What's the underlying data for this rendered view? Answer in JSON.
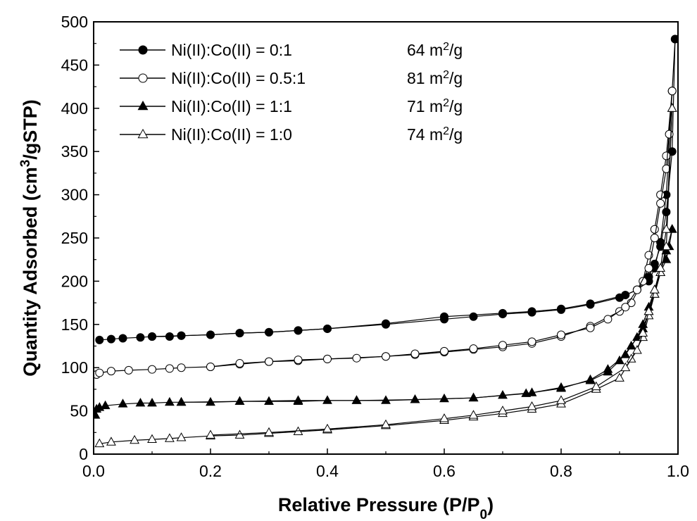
{
  "chart_data": {
    "type": "scatter",
    "xlabel": "Relative Pressure (P/P",
    "xlabel_sub": "0",
    "xlabel_tail": ")",
    "ylabel": "Quantity Adsorbed (cm",
    "ylabel_sup": "3",
    "ylabel_tail": "/gSTP)",
    "xlim": [
      0.0,
      1.0
    ],
    "ylim": [
      0,
      500
    ],
    "xticks": [
      "0.0",
      "0.2",
      "0.4",
      "0.6",
      "0.8",
      "1.0"
    ],
    "yticks": [
      "0",
      "50",
      "100",
      "150",
      "200",
      "250",
      "300",
      "350",
      "400",
      "450",
      "500"
    ],
    "legend_position": "top-left",
    "grid": false,
    "series": [
      {
        "name": "Ni(II):Co(II) = 0:1",
        "area": "64 m",
        "area_sup": "2",
        "area_unit": "/g",
        "marker": "circle",
        "filled": true,
        "adsorption": [
          [
            0.01,
            132
          ],
          [
            0.03,
            133
          ],
          [
            0.05,
            134
          ],
          [
            0.08,
            135
          ],
          [
            0.1,
            136
          ],
          [
            0.13,
            136
          ],
          [
            0.15,
            137
          ],
          [
            0.2,
            138
          ],
          [
            0.25,
            140
          ],
          [
            0.3,
            141
          ],
          [
            0.35,
            143
          ],
          [
            0.4,
            145
          ],
          [
            0.5,
            150
          ],
          [
            0.6,
            156
          ],
          [
            0.65,
            159
          ],
          [
            0.7,
            162
          ],
          [
            0.75,
            164
          ],
          [
            0.8,
            167
          ],
          [
            0.85,
            173
          ],
          [
            0.9,
            181
          ],
          [
            0.93,
            190
          ],
          [
            0.95,
            205
          ],
          [
            0.96,
            220
          ],
          [
            0.97,
            240
          ],
          [
            0.98,
            280
          ],
          [
            0.99,
            350
          ],
          [
            0.995,
            480
          ]
        ],
        "desorption": [
          [
            0.995,
            480
          ],
          [
            0.99,
            420
          ],
          [
            0.98,
            300
          ],
          [
            0.97,
            245
          ],
          [
            0.96,
            215
          ],
          [
            0.95,
            200
          ],
          [
            0.93,
            190
          ],
          [
            0.91,
            184
          ],
          [
            0.85,
            174
          ],
          [
            0.8,
            168
          ],
          [
            0.75,
            165
          ],
          [
            0.7,
            163
          ],
          [
            0.6,
            159
          ],
          [
            0.5,
            151
          ],
          [
            0.4,
            145
          ],
          [
            0.35,
            143
          ],
          [
            0.3,
            141
          ],
          [
            0.25,
            140
          ],
          [
            0.2,
            138
          ],
          [
            0.15,
            137
          ],
          [
            0.1,
            136
          ]
        ]
      },
      {
        "name": "Ni(II):Co(II) = 0.5:1",
        "area": "81 m",
        "area_sup": "2",
        "area_unit": "/g",
        "marker": "circle",
        "filled": false,
        "adsorption": [
          [
            0.005,
            92
          ],
          [
            0.01,
            94
          ],
          [
            0.03,
            96
          ],
          [
            0.06,
            97
          ],
          [
            0.1,
            98
          ],
          [
            0.13,
            99
          ],
          [
            0.15,
            100
          ],
          [
            0.2,
            101
          ],
          [
            0.25,
            104
          ],
          [
            0.3,
            107
          ],
          [
            0.35,
            108
          ],
          [
            0.4,
            110
          ],
          [
            0.5,
            113
          ],
          [
            0.55,
            115
          ],
          [
            0.6,
            118
          ],
          [
            0.65,
            121
          ],
          [
            0.7,
            124
          ],
          [
            0.75,
            128
          ],
          [
            0.8,
            136
          ],
          [
            0.85,
            148
          ],
          [
            0.9,
            165
          ],
          [
            0.92,
            175
          ],
          [
            0.94,
            200
          ],
          [
            0.95,
            230
          ],
          [
            0.96,
            260
          ],
          [
            0.97,
            300
          ],
          [
            0.98,
            345
          ],
          [
            0.99,
            420
          ]
        ],
        "desorption": [
          [
            0.99,
            420
          ],
          [
            0.985,
            370
          ],
          [
            0.98,
            330
          ],
          [
            0.97,
            290
          ],
          [
            0.96,
            250
          ],
          [
            0.95,
            215
          ],
          [
            0.93,
            190
          ],
          [
            0.91,
            170
          ],
          [
            0.88,
            156
          ],
          [
            0.85,
            146
          ],
          [
            0.8,
            138
          ],
          [
            0.75,
            130
          ],
          [
            0.7,
            126
          ],
          [
            0.65,
            122
          ],
          [
            0.6,
            119
          ],
          [
            0.55,
            116
          ],
          [
            0.5,
            113
          ],
          [
            0.45,
            111
          ],
          [
            0.4,
            110
          ],
          [
            0.35,
            109
          ],
          [
            0.3,
            107
          ],
          [
            0.25,
            105
          ],
          [
            0.2,
            101
          ]
        ]
      },
      {
        "name": "Ni(II):Co(II) = 1:1",
        "area": "71 m",
        "area_sup": "2",
        "area_unit": "/g",
        "marker": "triangle",
        "filled": true,
        "adsorption": [
          [
            0.003,
            45
          ],
          [
            0.005,
            52
          ],
          [
            0.01,
            54
          ],
          [
            0.02,
            56
          ],
          [
            0.05,
            58
          ],
          [
            0.08,
            59
          ],
          [
            0.1,
            59
          ],
          [
            0.13,
            60
          ],
          [
            0.15,
            60
          ],
          [
            0.2,
            60
          ],
          [
            0.25,
            61
          ],
          [
            0.3,
            61
          ],
          [
            0.35,
            61
          ],
          [
            0.4,
            62
          ],
          [
            0.45,
            62
          ],
          [
            0.5,
            62
          ],
          [
            0.55,
            63
          ],
          [
            0.6,
            64
          ],
          [
            0.65,
            65
          ],
          [
            0.7,
            68
          ],
          [
            0.75,
            71
          ],
          [
            0.8,
            77
          ],
          [
            0.85,
            85
          ],
          [
            0.88,
            95
          ],
          [
            0.9,
            108
          ],
          [
            0.92,
            125
          ],
          [
            0.94,
            145
          ],
          [
            0.95,
            165
          ],
          [
            0.96,
            185
          ],
          [
            0.97,
            210
          ],
          [
            0.98,
            235
          ],
          [
            0.99,
            260
          ]
        ],
        "desorption": [
          [
            0.99,
            260
          ],
          [
            0.985,
            240
          ],
          [
            0.98,
            225
          ],
          [
            0.97,
            210
          ],
          [
            0.96,
            190
          ],
          [
            0.95,
            170
          ],
          [
            0.94,
            150
          ],
          [
            0.93,
            135
          ],
          [
            0.91,
            115
          ],
          [
            0.88,
            98
          ],
          [
            0.85,
            86
          ],
          [
            0.8,
            76
          ],
          [
            0.74,
            70
          ],
          [
            0.65,
            65
          ],
          [
            0.55,
            63
          ],
          [
            0.45,
            62
          ],
          [
            0.35,
            62
          ],
          [
            0.25,
            61
          ],
          [
            0.15,
            60
          ]
        ]
      },
      {
        "name": "Ni(II):Co(II) = 1:0",
        "area": "74 m",
        "area_sup": "2",
        "area_unit": "/g",
        "marker": "triangle",
        "filled": false,
        "adsorption": [
          [
            0.01,
            12
          ],
          [
            0.03,
            14
          ],
          [
            0.07,
            16
          ],
          [
            0.1,
            17
          ],
          [
            0.13,
            18
          ],
          [
            0.15,
            19
          ],
          [
            0.2,
            21
          ],
          [
            0.25,
            22
          ],
          [
            0.3,
            24
          ],
          [
            0.35,
            26
          ],
          [
            0.4,
            28
          ],
          [
            0.5,
            33
          ],
          [
            0.6,
            39
          ],
          [
            0.65,
            43
          ],
          [
            0.7,
            47
          ],
          [
            0.75,
            52
          ],
          [
            0.8,
            58
          ],
          [
            0.86,
            75
          ],
          [
            0.9,
            88
          ],
          [
            0.92,
            110
          ],
          [
            0.94,
            135
          ],
          [
            0.95,
            160
          ],
          [
            0.96,
            185
          ],
          [
            0.97,
            210
          ],
          [
            0.98,
            240
          ],
          [
            0.99,
            400
          ]
        ],
        "desorption": [
          [
            0.99,
            400
          ],
          [
            0.98,
            260
          ],
          [
            0.97,
            215
          ],
          [
            0.96,
            190
          ],
          [
            0.95,
            165
          ],
          [
            0.94,
            140
          ],
          [
            0.93,
            120
          ],
          [
            0.91,
            100
          ],
          [
            0.86,
            78
          ],
          [
            0.8,
            62
          ],
          [
            0.75,
            55
          ],
          [
            0.7,
            50
          ],
          [
            0.65,
            45
          ],
          [
            0.6,
            41
          ],
          [
            0.5,
            34
          ],
          [
            0.4,
            29
          ],
          [
            0.3,
            25
          ],
          [
            0.2,
            22
          ]
        ]
      }
    ]
  }
}
